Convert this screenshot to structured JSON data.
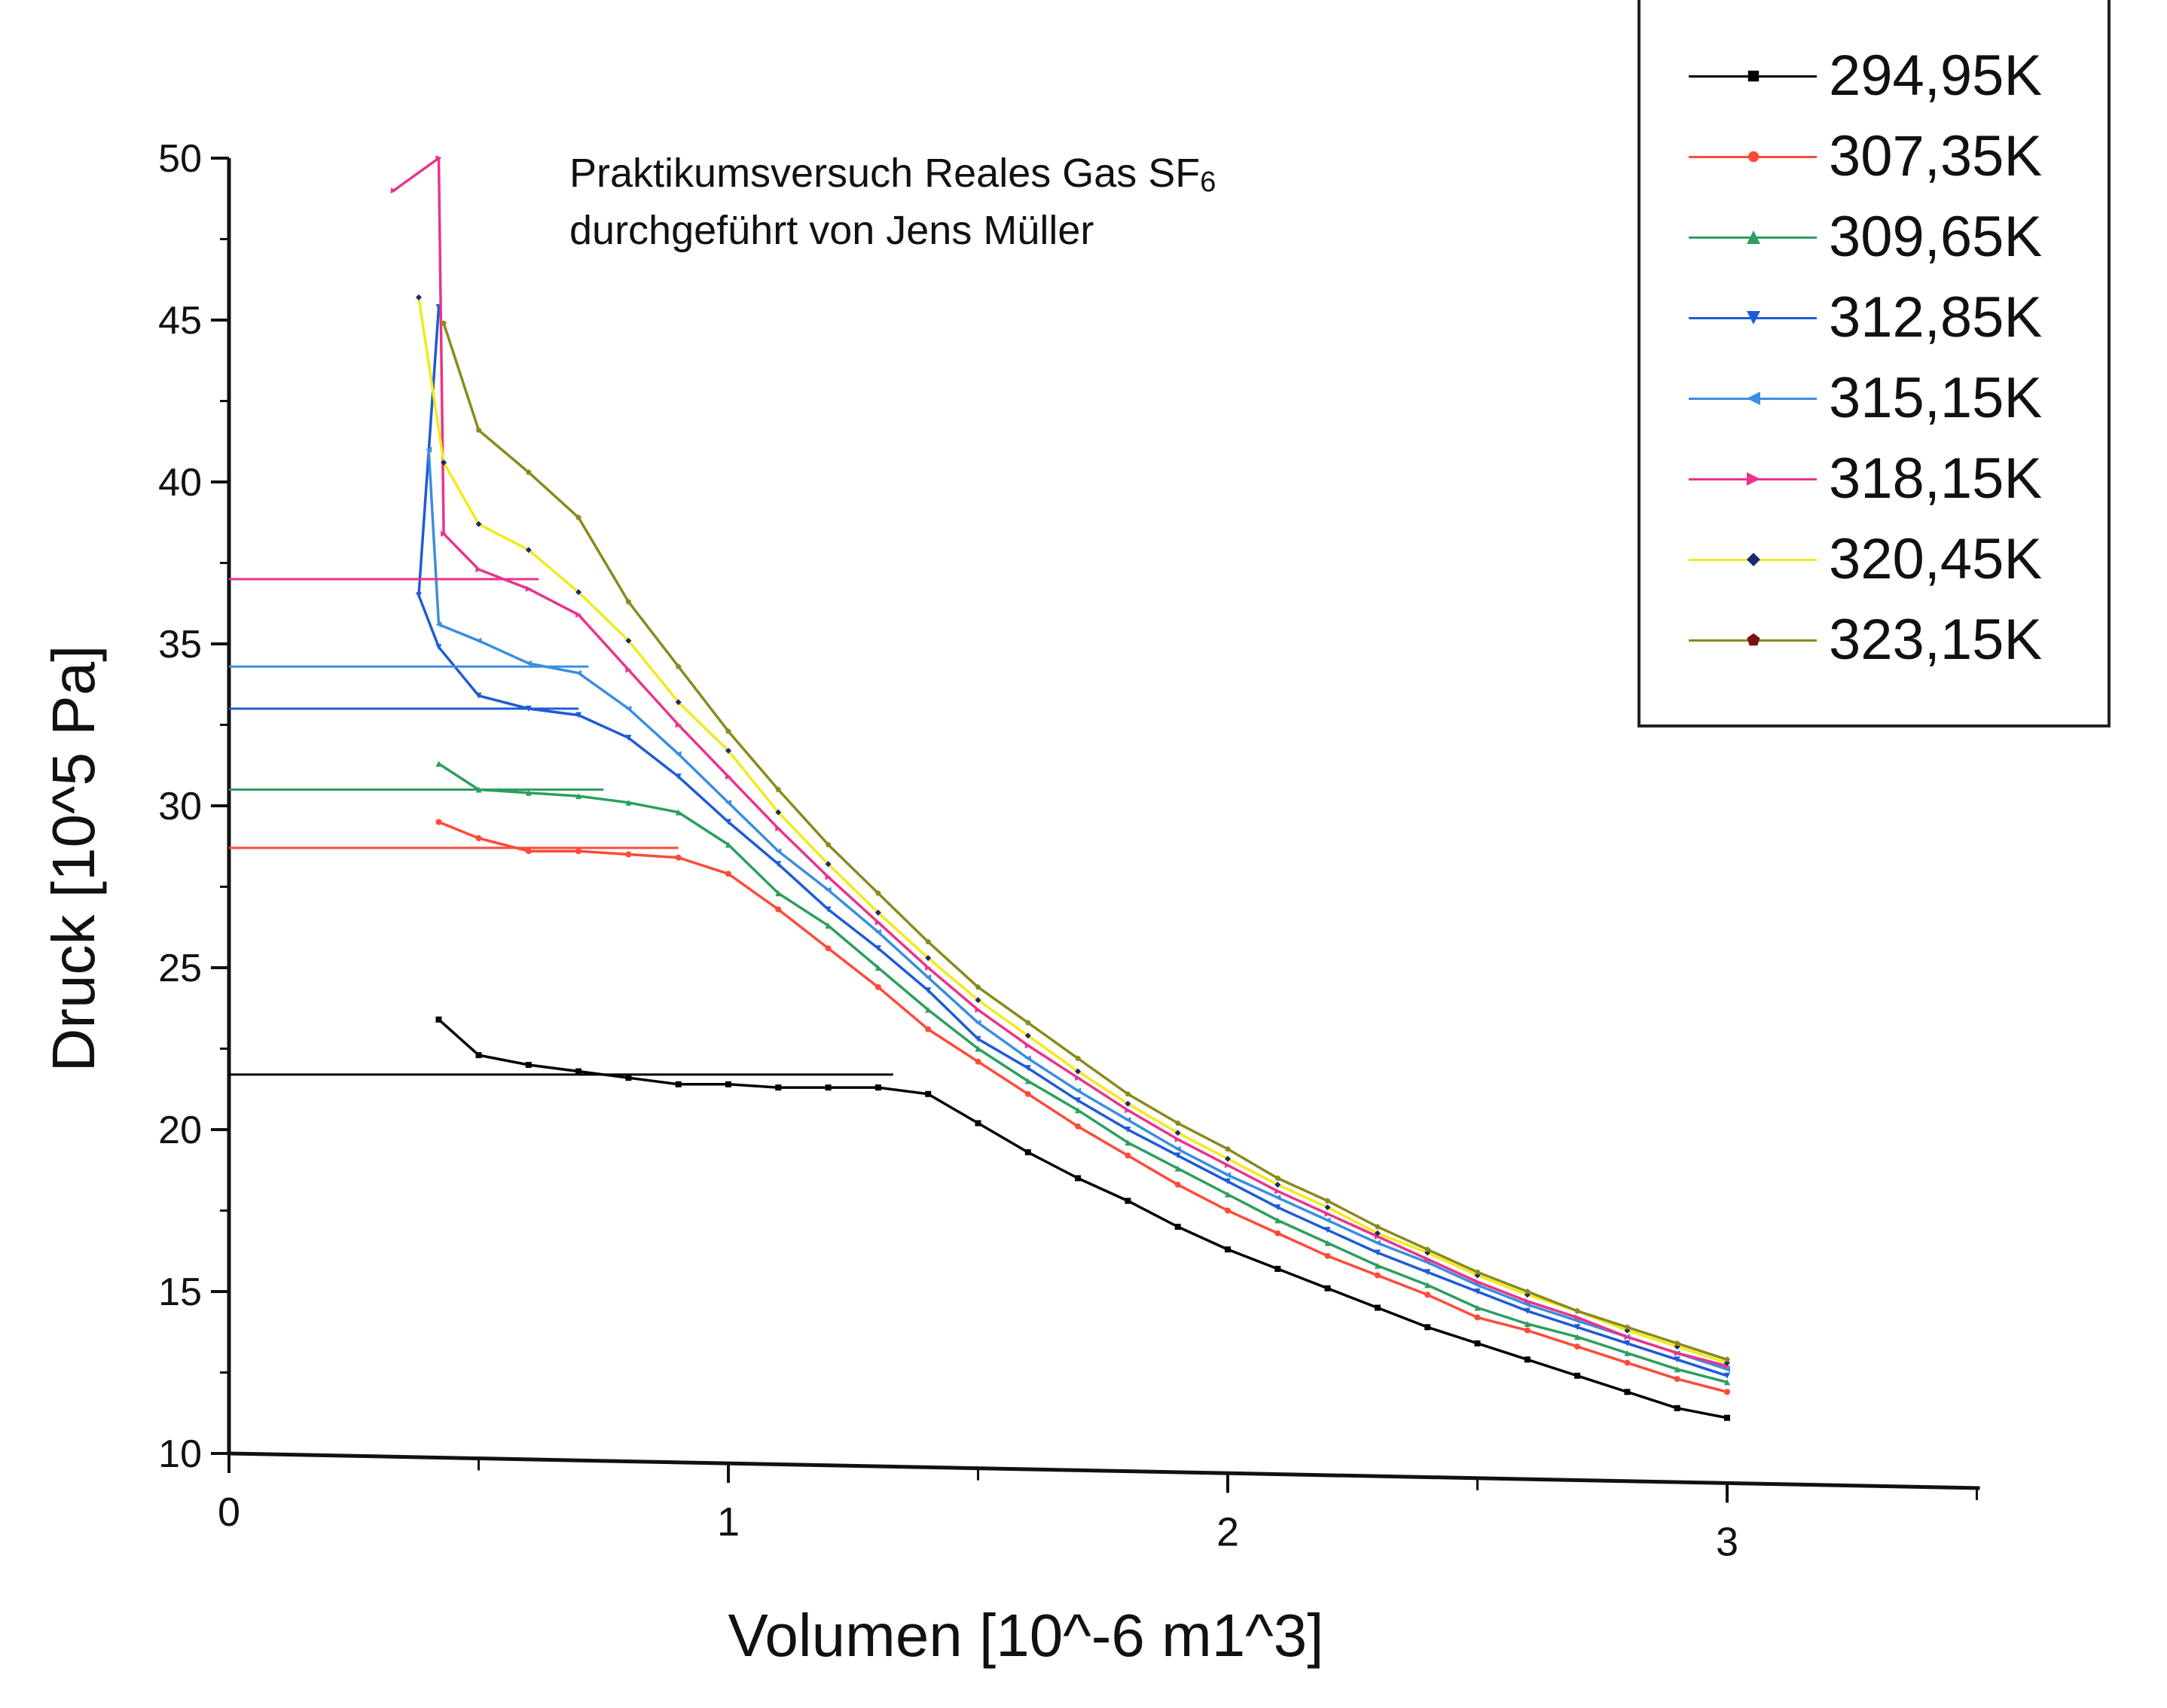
{
  "chart_data": {
    "type": "line",
    "title": "",
    "annotation": [
      "Praktikumsversuch Reales Gas SF",
      "6",
      "durchgeführt von Jens Müller"
    ],
    "xlabel": "Volumen [10^-6 m1^3]",
    "ylabel": "Druck [10^5 Pa]",
    "xlim": [
      0,
      3.5
    ],
    "ylim": [
      10,
      50
    ],
    "x_ticks": [
      0,
      1,
      2,
      3
    ],
    "y_ticks": [
      10,
      15,
      20,
      25,
      30,
      35,
      40,
      45,
      50
    ],
    "grid": false,
    "legend_position": "top-right",
    "series": [
      {
        "name": "294,95K",
        "color": "#000000",
        "marker": "square",
        "points": [
          [
            0.42,
            23.4
          ],
          [
            0.5,
            22.3
          ],
          [
            0.6,
            22.0
          ],
          [
            0.7,
            21.8
          ],
          [
            0.8,
            21.6
          ],
          [
            0.9,
            21.4
          ],
          [
            1.0,
            21.4
          ],
          [
            1.1,
            21.3
          ],
          [
            1.2,
            21.3
          ],
          [
            1.3,
            21.3
          ],
          [
            1.4,
            21.1
          ],
          [
            1.5,
            20.2
          ],
          [
            1.6,
            19.3
          ],
          [
            1.7,
            18.5
          ],
          [
            1.8,
            17.8
          ],
          [
            1.9,
            17.0
          ],
          [
            2.0,
            16.3
          ],
          [
            2.1,
            15.7
          ],
          [
            2.2,
            15.1
          ],
          [
            2.3,
            14.5
          ],
          [
            2.4,
            13.9
          ],
          [
            2.5,
            13.4
          ],
          [
            2.6,
            12.9
          ],
          [
            2.7,
            12.4
          ],
          [
            2.8,
            11.9
          ],
          [
            2.9,
            11.4
          ],
          [
            3.0,
            11.1
          ]
        ],
        "horizontal": {
          "y": 21.7,
          "x_from": 0,
          "x_to": 1.33
        }
      },
      {
        "name": "307,35K",
        "color": "#ff4a3a",
        "marker": "circle",
        "points": [
          [
            0.42,
            29.5
          ],
          [
            0.5,
            29.0
          ],
          [
            0.6,
            28.6
          ],
          [
            0.7,
            28.6
          ],
          [
            0.8,
            28.5
          ],
          [
            0.9,
            28.4
          ],
          [
            1.0,
            27.9
          ],
          [
            1.1,
            26.8
          ],
          [
            1.2,
            25.6
          ],
          [
            1.3,
            24.4
          ],
          [
            1.4,
            23.1
          ],
          [
            1.5,
            22.1
          ],
          [
            1.6,
            21.1
          ],
          [
            1.7,
            20.1
          ],
          [
            1.8,
            19.2
          ],
          [
            1.9,
            18.3
          ],
          [
            2.0,
            17.5
          ],
          [
            2.1,
            16.8
          ],
          [
            2.2,
            16.1
          ],
          [
            2.3,
            15.5
          ],
          [
            2.4,
            14.9
          ],
          [
            2.5,
            14.2
          ],
          [
            2.6,
            13.8
          ],
          [
            2.7,
            13.3
          ],
          [
            2.8,
            12.8
          ],
          [
            2.9,
            12.3
          ],
          [
            3.0,
            11.9
          ]
        ],
        "horizontal": {
          "y": 28.7,
          "x_from": 0,
          "x_to": 0.9
        }
      },
      {
        "name": "309,65K",
        "color": "#2e9e5e",
        "marker": "triangle-up",
        "points": [
          [
            0.42,
            31.3
          ],
          [
            0.5,
            30.5
          ],
          [
            0.6,
            30.4
          ],
          [
            0.7,
            30.3
          ],
          [
            0.8,
            30.1
          ],
          [
            0.9,
            29.8
          ],
          [
            1.0,
            28.8
          ],
          [
            1.1,
            27.3
          ],
          [
            1.2,
            26.3
          ],
          [
            1.3,
            25.0
          ],
          [
            1.4,
            23.7
          ],
          [
            1.5,
            22.5
          ],
          [
            1.6,
            21.5
          ],
          [
            1.7,
            20.6
          ],
          [
            1.8,
            19.6
          ],
          [
            1.9,
            18.8
          ],
          [
            2.0,
            18.0
          ],
          [
            2.1,
            17.2
          ],
          [
            2.2,
            16.5
          ],
          [
            2.3,
            15.8
          ],
          [
            2.4,
            15.2
          ],
          [
            2.5,
            14.5
          ],
          [
            2.6,
            14.0
          ],
          [
            2.7,
            13.6
          ],
          [
            2.8,
            13.1
          ],
          [
            2.9,
            12.6
          ],
          [
            3.0,
            12.2
          ]
        ],
        "horizontal": {
          "y": 30.5,
          "x_from": 0,
          "x_to": 0.75
        }
      },
      {
        "name": "312,85K",
        "color": "#1f5bd6",
        "marker": "triangle-down",
        "points": [
          [
            0.42,
            45.4
          ],
          [
            0.38,
            36.5
          ],
          [
            0.42,
            34.9
          ],
          [
            0.5,
            33.4
          ],
          [
            0.6,
            33.0
          ],
          [
            0.7,
            32.8
          ],
          [
            0.8,
            32.1
          ],
          [
            0.9,
            30.9
          ],
          [
            1.0,
            29.5
          ],
          [
            1.1,
            28.2
          ],
          [
            1.2,
            26.8
          ],
          [
            1.3,
            25.6
          ],
          [
            1.4,
            24.3
          ],
          [
            1.5,
            22.8
          ],
          [
            1.6,
            21.9
          ],
          [
            1.7,
            20.9
          ],
          [
            1.8,
            20.0
          ],
          [
            1.9,
            19.2
          ],
          [
            2.0,
            18.4
          ],
          [
            2.1,
            17.6
          ],
          [
            2.2,
            16.9
          ],
          [
            2.3,
            16.2
          ],
          [
            2.4,
            15.6
          ],
          [
            2.5,
            15.0
          ],
          [
            2.6,
            14.4
          ],
          [
            2.7,
            13.9
          ],
          [
            2.8,
            13.4
          ],
          [
            2.9,
            12.9
          ],
          [
            3.0,
            12.4
          ]
        ],
        "horizontal": {
          "y": 33.0,
          "x_from": 0,
          "x_to": 0.7
        }
      },
      {
        "name": "315,15K",
        "color": "#3a8ede",
        "marker": "triangle-left",
        "points": [
          [
            0.4,
            41.0
          ],
          [
            0.42,
            35.6
          ],
          [
            0.5,
            35.1
          ],
          [
            0.6,
            34.4
          ],
          [
            0.7,
            34.1
          ],
          [
            0.8,
            33.0
          ],
          [
            0.9,
            31.6
          ],
          [
            1.0,
            30.1
          ],
          [
            1.1,
            28.6
          ],
          [
            1.2,
            27.4
          ],
          [
            1.3,
            26.1
          ],
          [
            1.4,
            24.7
          ],
          [
            1.5,
            23.3
          ],
          [
            1.6,
            22.2
          ],
          [
            1.7,
            21.2
          ],
          [
            1.8,
            20.3
          ],
          [
            1.9,
            19.4
          ],
          [
            2.0,
            18.6
          ],
          [
            2.1,
            17.9
          ],
          [
            2.2,
            17.2
          ],
          [
            2.3,
            16.5
          ],
          [
            2.4,
            15.9
          ],
          [
            2.5,
            15.2
          ],
          [
            2.6,
            14.6
          ],
          [
            2.7,
            14.1
          ],
          [
            2.8,
            13.6
          ],
          [
            2.9,
            13.1
          ],
          [
            3.0,
            12.6
          ]
        ],
        "horizontal": {
          "y": 34.3,
          "x_from": 0,
          "x_to": 0.72
        }
      },
      {
        "name": "318,15K",
        "color": "#e8348c",
        "marker": "triangle-right",
        "points": [
          [
            0.33,
            49.0
          ],
          [
            0.42,
            50.0
          ],
          [
            0.43,
            38.4
          ],
          [
            0.5,
            37.3
          ],
          [
            0.6,
            36.7
          ],
          [
            0.7,
            35.9
          ],
          [
            0.8,
            34.2
          ],
          [
            0.9,
            32.5
          ],
          [
            1.0,
            30.9
          ],
          [
            1.1,
            29.3
          ],
          [
            1.2,
            27.8
          ],
          [
            1.3,
            26.4
          ],
          [
            1.4,
            25.0
          ],
          [
            1.5,
            23.7
          ],
          [
            1.6,
            22.6
          ],
          [
            1.7,
            21.6
          ],
          [
            1.8,
            20.6
          ],
          [
            1.9,
            19.7
          ],
          [
            2.0,
            18.9
          ],
          [
            2.1,
            18.1
          ],
          [
            2.2,
            17.4
          ],
          [
            2.3,
            16.7
          ],
          [
            2.4,
            16.0
          ],
          [
            2.5,
            15.3
          ],
          [
            2.6,
            14.7
          ],
          [
            2.7,
            14.2
          ],
          [
            2.8,
            13.6
          ],
          [
            2.9,
            13.1
          ],
          [
            3.0,
            12.7
          ]
        ],
        "horizontal": {
          "y": 37.0,
          "x_from": 0,
          "x_to": 0.62
        }
      },
      {
        "name": "320,45K",
        "color": "#f2ea1c",
        "marker": "diamond",
        "points": [
          [
            0.38,
            45.7
          ],
          [
            0.43,
            40.6
          ],
          [
            0.5,
            38.7
          ],
          [
            0.6,
            37.9
          ],
          [
            0.7,
            36.6
          ],
          [
            0.8,
            35.1
          ],
          [
            0.9,
            33.2
          ],
          [
            1.0,
            31.7
          ],
          [
            1.1,
            29.8
          ],
          [
            1.2,
            28.2
          ],
          [
            1.3,
            26.7
          ],
          [
            1.4,
            25.3
          ],
          [
            1.5,
            24.0
          ],
          [
            1.6,
            22.9
          ],
          [
            1.7,
            21.8
          ],
          [
            1.8,
            20.8
          ],
          [
            1.9,
            19.9
          ],
          [
            2.0,
            19.1
          ],
          [
            2.1,
            18.3
          ],
          [
            2.2,
            17.6
          ],
          [
            2.3,
            16.8
          ],
          [
            2.4,
            16.2
          ],
          [
            2.5,
            15.5
          ],
          [
            2.6,
            14.9
          ],
          [
            2.7,
            14.4
          ],
          [
            2.8,
            13.8
          ],
          [
            2.9,
            13.3
          ],
          [
            3.0,
            12.8
          ]
        ]
      },
      {
        "name": "323,15K",
        "color": "#8a8a1e",
        "marker": "pentagon",
        "points": [
          [
            0.43,
            44.9
          ],
          [
            0.5,
            41.6
          ],
          [
            0.6,
            40.3
          ],
          [
            0.7,
            38.9
          ],
          [
            0.8,
            36.3
          ],
          [
            0.9,
            34.3
          ],
          [
            1.0,
            32.3
          ],
          [
            1.1,
            30.5
          ],
          [
            1.2,
            28.8
          ],
          [
            1.3,
            27.3
          ],
          [
            1.4,
            25.8
          ],
          [
            1.5,
            24.4
          ],
          [
            1.6,
            23.3
          ],
          [
            1.7,
            22.2
          ],
          [
            1.8,
            21.1
          ],
          [
            1.9,
            20.2
          ],
          [
            2.0,
            19.4
          ],
          [
            2.1,
            18.5
          ],
          [
            2.2,
            17.8
          ],
          [
            2.3,
            17.0
          ],
          [
            2.4,
            16.3
          ],
          [
            2.5,
            15.6
          ],
          [
            2.6,
            15.0
          ],
          [
            2.7,
            14.4
          ],
          [
            2.8,
            13.9
          ],
          [
            2.9,
            13.4
          ],
          [
            3.0,
            12.9
          ]
        ]
      }
    ]
  }
}
